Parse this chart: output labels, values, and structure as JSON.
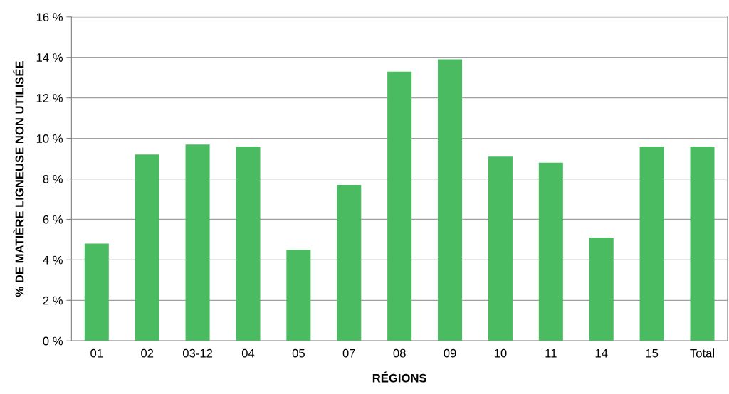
{
  "chart_data": {
    "type": "bar",
    "xlabel": "RÉGIONS",
    "ylabel": "% DE MATIÈRE LIGNEUSE NON UTILISÉE",
    "categories": [
      "01",
      "02",
      "03-12",
      "04",
      "05",
      "07",
      "08",
      "09",
      "10",
      "11",
      "14",
      "15",
      "Total"
    ],
    "values": [
      4.8,
      9.2,
      9.7,
      9.6,
      4.5,
      7.7,
      13.3,
      13.9,
      9.1,
      8.8,
      5.1,
      9.6,
      9.6
    ],
    "color": "#4abb60",
    "ylim": [
      0,
      16
    ],
    "yticks": [
      {
        "value": 0,
        "label": "0 %"
      },
      {
        "value": 2,
        "label": "2 %"
      },
      {
        "value": 4,
        "label": "4 %"
      },
      {
        "value": 6,
        "label": "6 %"
      },
      {
        "value": 8,
        "label": "8 %"
      },
      {
        "value": 10,
        "label": "10 %"
      },
      {
        "value": 12,
        "label": "12 %"
      },
      {
        "value": 14,
        "label": "14 %"
      },
      {
        "value": 16,
        "label": "16 %"
      }
    ],
    "grid": "y"
  }
}
